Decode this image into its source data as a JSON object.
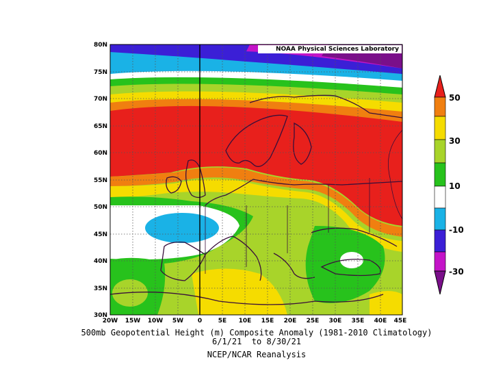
{
  "map": {
    "attribution": "NOAA Physical Sciences Laboratory",
    "lat_labels": [
      "80N",
      "75N",
      "70N",
      "65N",
      "60N",
      "55N",
      "50N",
      "45N",
      "40N",
      "35N",
      "30N"
    ],
    "lon_labels": [
      "20W",
      "15W",
      "10W",
      "5W",
      "0",
      "5E",
      "10E",
      "15E",
      "20E",
      "25E",
      "30E",
      "35E",
      "40E",
      "45E"
    ],
    "lat_range": [
      30,
      80
    ],
    "lon_range": [
      -20,
      45
    ]
  },
  "colorbar": {
    "labels": [
      "50",
      "30",
      "10",
      "-10",
      "-30"
    ],
    "bins": [
      {
        "range": "40 to 50",
        "color": "#e8201c"
      },
      {
        "range": "30 to 40",
        "color": "#f07f10"
      },
      {
        "range": "20 to 30",
        "color": "#f5dc00"
      },
      {
        "range": "10 to 20",
        "color": "#a8d42a"
      },
      {
        "range": "0 to 10",
        "color": "#27c21c"
      },
      {
        "range": "-10 to 0",
        "color": "#ffffff"
      },
      {
        "range": "-20 to -10",
        "color": "#1ab2e6"
      },
      {
        "range": "-30 to -20",
        "color": "#3b1fd6"
      },
      {
        "range": "-40 to -30",
        "color": "#c414c8"
      },
      {
        "range": "below -40",
        "color": "#7a0f8a"
      }
    ]
  },
  "caption": {
    "title": "500mb Geopotential Height (m) Composite Anomaly (1981-2010 Climatology)",
    "dates": "6/1/21  to 8/30/21",
    "source": "NCEP/NCAR Reanalysis"
  }
}
